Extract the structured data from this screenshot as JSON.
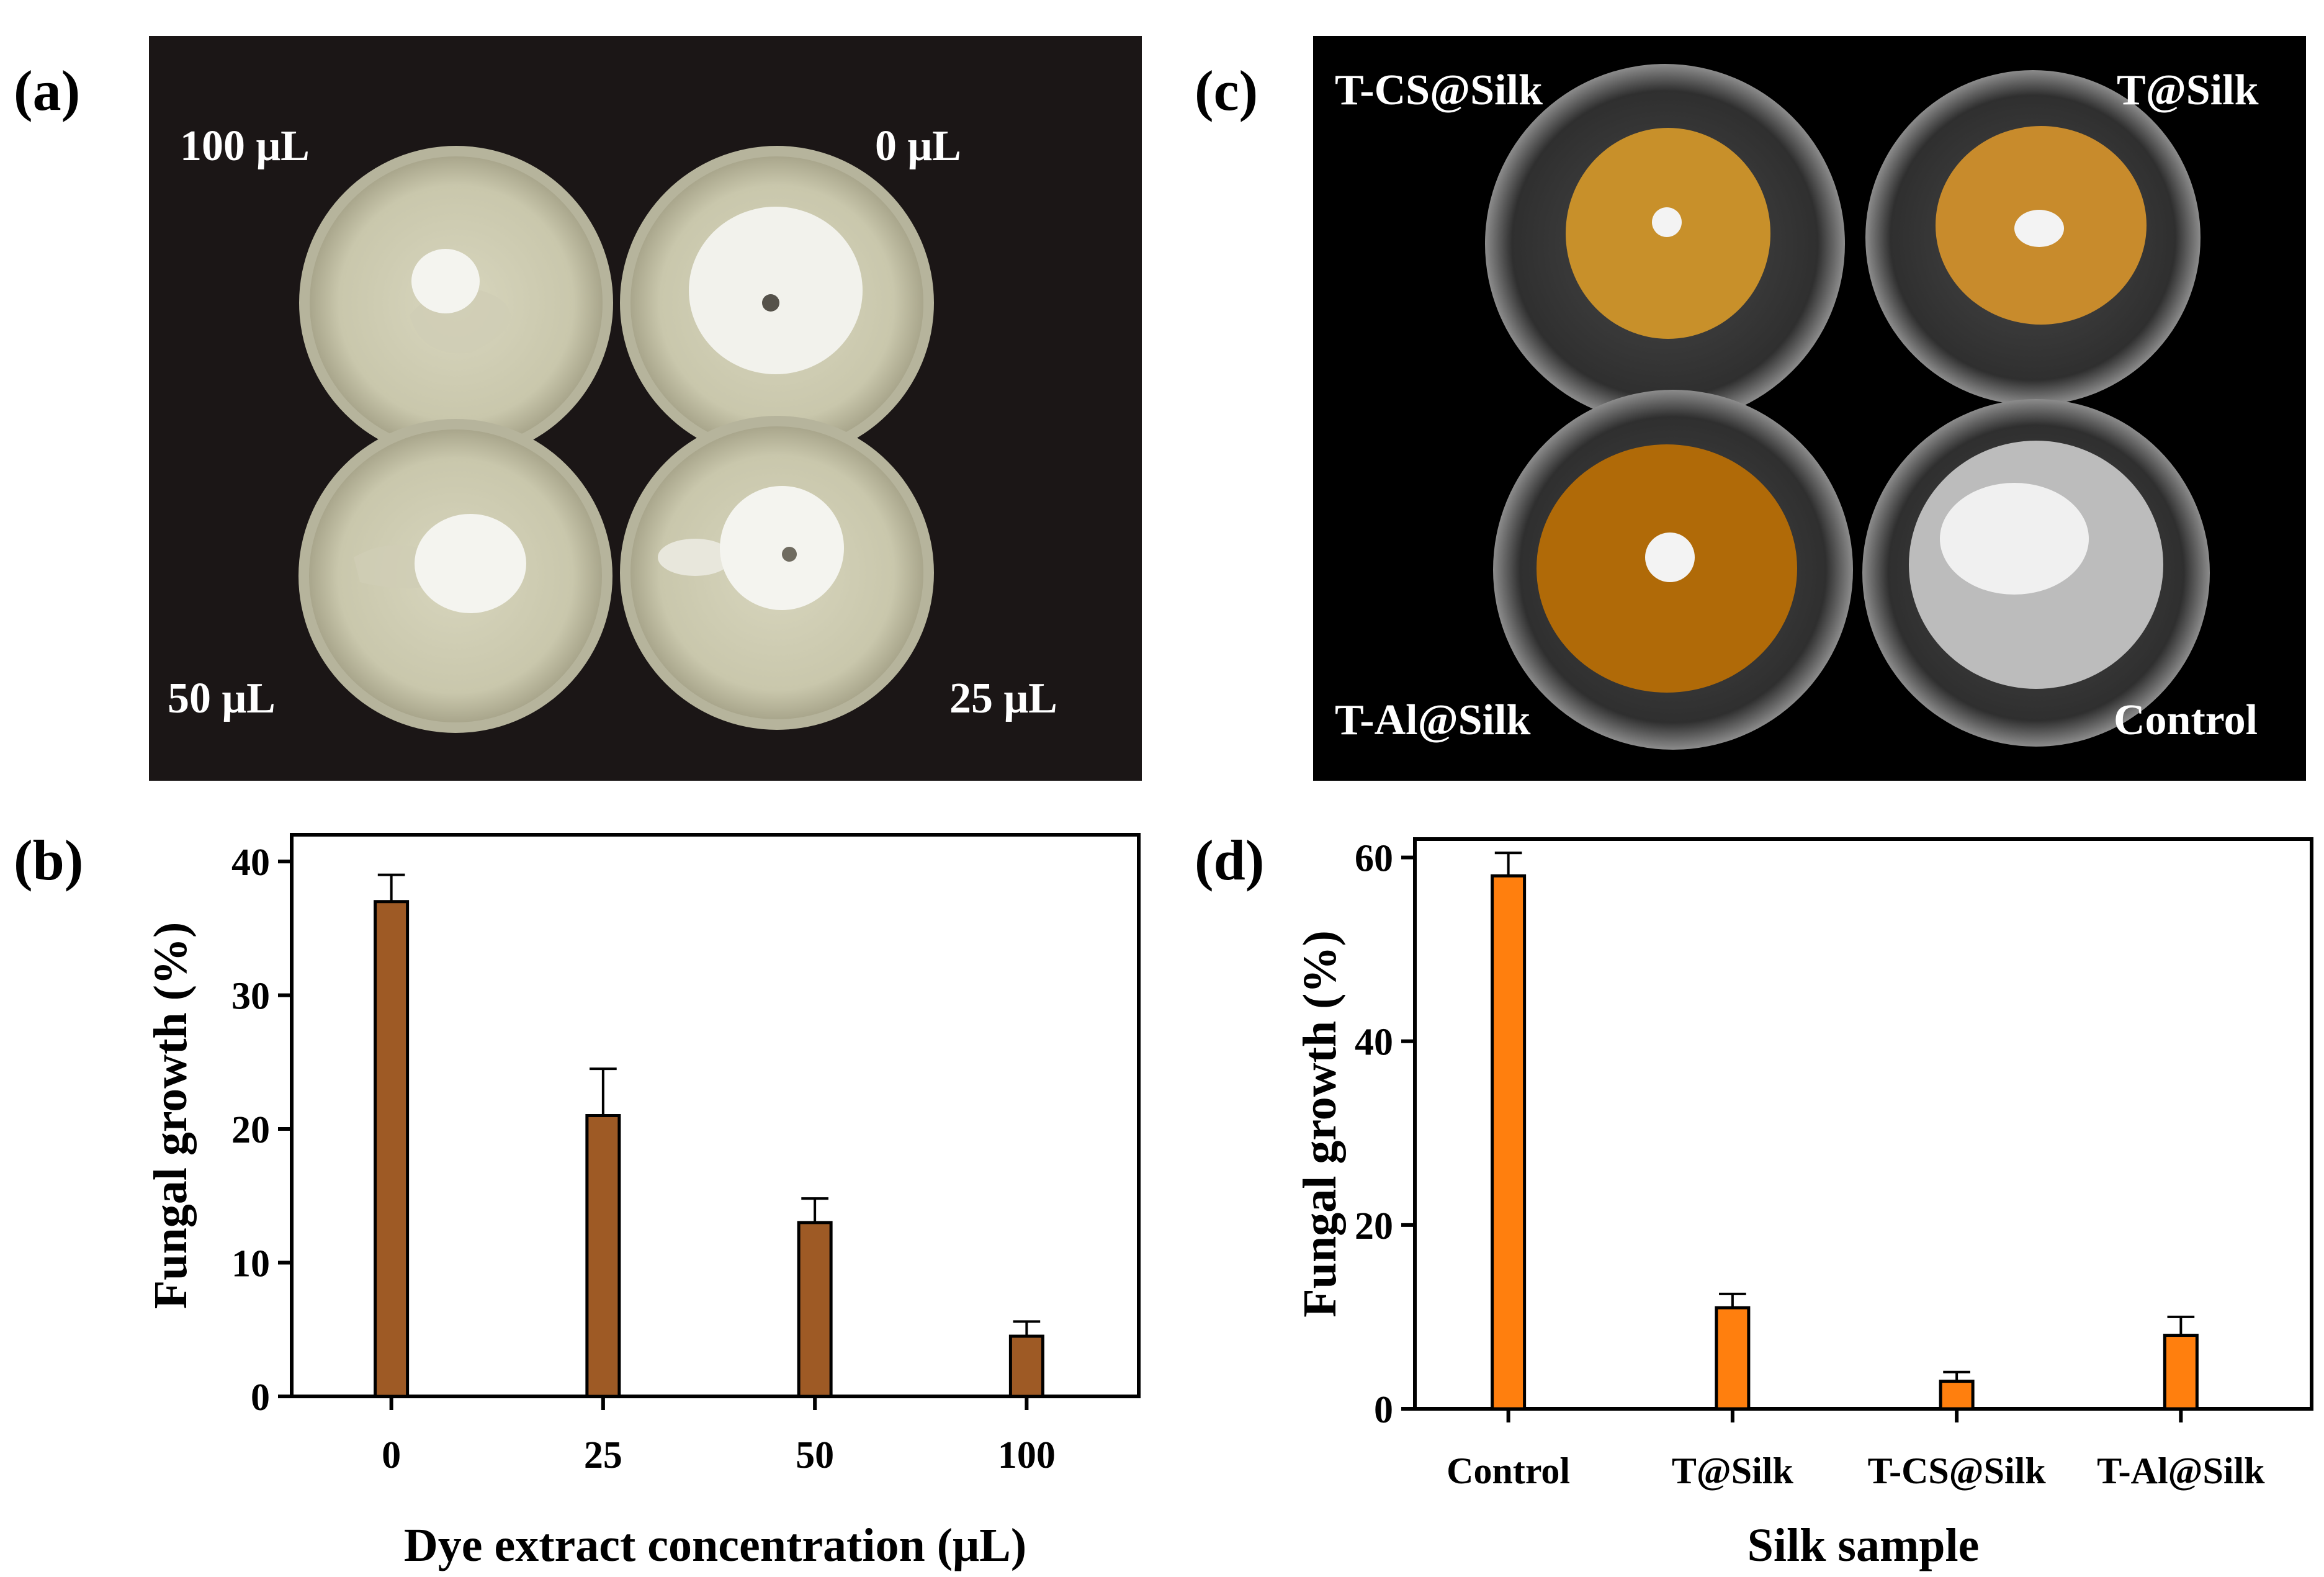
{
  "panels": {
    "a": {
      "letter": "(a)",
      "labels": [
        "100 μL",
        "0 μL",
        "50 μL",
        "25 μL"
      ]
    },
    "b": {
      "letter": "(b)"
    },
    "c": {
      "letter": "(c)",
      "labels": [
        "T-CS@Silk",
        "T@Silk",
        "T-Al@Silk",
        "Control"
      ]
    },
    "d": {
      "letter": "(d)"
    }
  },
  "colors": {
    "bar_b": "#9e5a25",
    "bar_d": "#ff7f0e",
    "photo_background": "#1b1616"
  },
  "chart_data": [
    {
      "panel": "b",
      "type": "bar",
      "categories": [
        "0",
        "25",
        "50",
        "100"
      ],
      "values": [
        37,
        21,
        13,
        4.5
      ],
      "errors": [
        2,
        3.5,
        1.8,
        1.1
      ],
      "xlabel": "Dye extract concentration (μL)",
      "ylabel": "Fungal growth (%)",
      "ylim": [
        0,
        42
      ],
      "yticks": [
        0,
        10,
        20,
        30,
        40
      ],
      "grid": false
    },
    {
      "panel": "d",
      "type": "bar",
      "categories": [
        "Control",
        "T@Silk",
        "T-CS@Silk",
        "T-Al@Silk"
      ],
      "values": [
        58,
        11,
        3,
        8
      ],
      "errors": [
        2.5,
        1.5,
        1,
        2
      ],
      "xlabel": "Silk sample",
      "ylabel": "Fungal growth (%)",
      "ylim": [
        0,
        62
      ],
      "yticks": [
        0,
        20,
        40,
        60
      ],
      "grid": false
    }
  ]
}
